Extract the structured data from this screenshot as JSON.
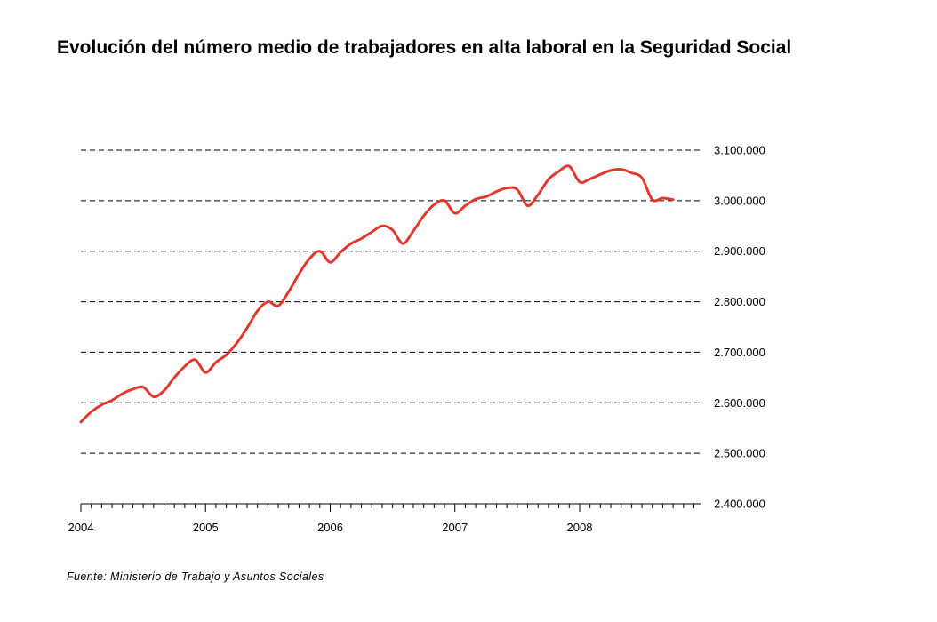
{
  "chart_data": {
    "type": "line",
    "title": "Evolución del número medio de trabajadores en alta laboral en la Seguridad Social",
    "source": "Fuente: Ministerio de Trabajo y Asuntos Sociales",
    "xlabel": "",
    "ylabel": "",
    "x_tick_labels": [
      "2004",
      "2005",
      "2006",
      "2007",
      "2008"
    ],
    "y_tick_labels": [
      "2.400.000",
      "2.500.000",
      "2.600.000",
      "2.700.000",
      "2.800.000",
      "2.900.000",
      "3.000.000",
      "3.100.000"
    ],
    "y_ticks": [
      2400000,
      2500000,
      2600000,
      2700000,
      2800000,
      2900000,
      3000000,
      3100000
    ],
    "ylim": [
      2400000,
      3100000
    ],
    "xlim": [
      2004.0,
      2008.97
    ],
    "y_axis_position": "right",
    "gridlines": "horizontal dashed",
    "line_color": "#e03a2e",
    "series": [
      {
        "x": [
          2004.0,
          2004.083,
          2004.167,
          2004.25,
          2004.333,
          2004.417,
          2004.5,
          2004.583,
          2004.667,
          2004.75,
          2004.833,
          2004.917,
          2005.0,
          2005.083,
          2005.167,
          2005.25,
          2005.333,
          2005.417,
          2005.5,
          2005.583,
          2005.667,
          2005.75,
          2005.833,
          2005.917,
          2006.0,
          2006.083,
          2006.167,
          2006.25,
          2006.333,
          2006.417,
          2006.5,
          2006.583,
          2006.667,
          2006.75,
          2006.833,
          2006.917,
          2007.0,
          2007.083,
          2007.167,
          2007.25,
          2007.333,
          2007.417,
          2007.5,
          2007.583,
          2007.667,
          2007.75,
          2007.833,
          2007.917,
          2008.0,
          2008.083,
          2008.167,
          2008.25,
          2008.333,
          2008.417,
          2008.5,
          2008.583,
          2008.667,
          2008.75
        ],
        "values": [
          2562000,
          2582000,
          2596000,
          2605000,
          2618000,
          2627000,
          2631000,
          2612000,
          2624000,
          2650000,
          2672000,
          2685000,
          2660000,
          2680000,
          2695000,
          2718000,
          2748000,
          2782000,
          2800000,
          2792000,
          2820000,
          2855000,
          2885000,
          2900000,
          2878000,
          2898000,
          2915000,
          2925000,
          2938000,
          2950000,
          2942000,
          2915000,
          2940000,
          2970000,
          2992000,
          3000000,
          2975000,
          2990000,
          3003000,
          3008000,
          3018000,
          3025000,
          3022000,
          2990000,
          3012000,
          3042000,
          3058000,
          3068000,
          3037000,
          3043000,
          3052000,
          3060000,
          3062000,
          3055000,
          3045000,
          3002000,
          3005000,
          3002000
        ]
      }
    ]
  }
}
